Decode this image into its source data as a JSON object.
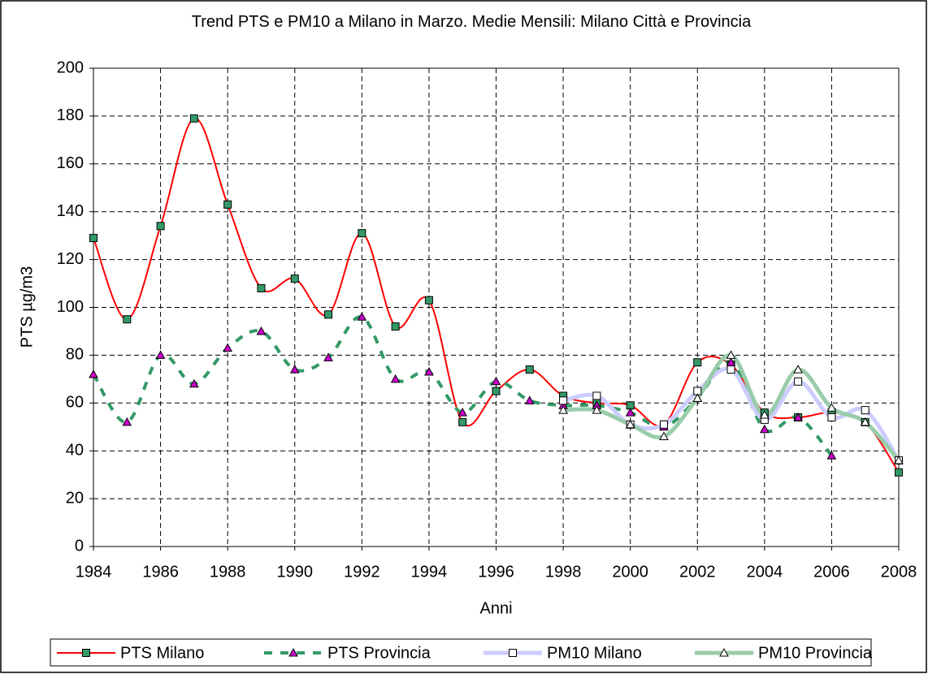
{
  "chart_data": {
    "type": "line",
    "title": "Trend PTS e PM10 a Milano in Marzo. Medie Mensili: Milano Città e Provincia",
    "x_label": "Anni",
    "y_label": "PTS µg/m3",
    "x": [
      1984,
      1985,
      1986,
      1987,
      1988,
      1989,
      1990,
      1991,
      1992,
      1993,
      1994,
      1995,
      1996,
      1997,
      1998,
      1999,
      2000,
      2001,
      2002,
      2003,
      2004,
      2005,
      2006,
      2007,
      2008
    ],
    "xlim": [
      1984,
      2008
    ],
    "xticks": [
      1984,
      1986,
      1988,
      1990,
      1992,
      1994,
      1996,
      1998,
      2000,
      2002,
      2004,
      2006,
      2008
    ],
    "ylim": [
      0,
      200
    ],
    "yticks": [
      0,
      20,
      40,
      60,
      80,
      100,
      120,
      140,
      160,
      180,
      200
    ],
    "grid": true,
    "legend": "bottom",
    "series": [
      {
        "name": "PTS Milano",
        "color": "#ff0000",
        "values": [
          129,
          95,
          134,
          179,
          143,
          108,
          112,
          97,
          131,
          92,
          103,
          52,
          65,
          74,
          63,
          60,
          59,
          51,
          77,
          76,
          56,
          54,
          56,
          52,
          31
        ]
      },
      {
        "name": "PTS Provincia",
        "color": "#339966",
        "values": [
          72,
          52,
          80,
          68,
          83,
          90,
          74,
          79,
          96,
          70,
          73,
          56,
          69,
          61,
          59,
          59,
          56,
          50,
          62,
          77,
          49,
          54,
          38,
          null,
          null
        ]
      },
      {
        "name": "PM10 Milano",
        "color": "#ccccff",
        "values": [
          null,
          null,
          null,
          null,
          null,
          null,
          null,
          null,
          null,
          null,
          null,
          null,
          null,
          null,
          61,
          63,
          51,
          51,
          65,
          74,
          53,
          69,
          54,
          57,
          36
        ]
      },
      {
        "name": "PM10 Provincia",
        "color": "#99ccaa",
        "values": [
          null,
          null,
          null,
          null,
          null,
          null,
          null,
          null,
          null,
          null,
          null,
          null,
          null,
          null,
          57,
          57,
          51,
          46,
          62,
          80,
          55,
          74,
          58,
          52,
          36
        ]
      }
    ]
  }
}
